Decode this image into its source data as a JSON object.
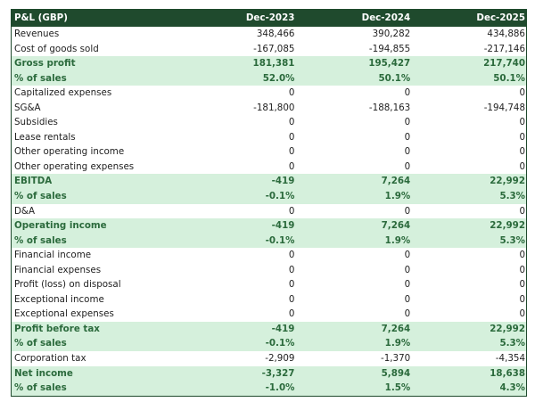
{
  "header": {
    "title": "P&L (GBP)",
    "columns": [
      "Dec-2023",
      "Dec-2024",
      "Dec-2025"
    ]
  },
  "colors": {
    "header_bg": "#1f4a2d",
    "highlight_bg": "#d5f0dc",
    "highlight_text": "#2b6a3c"
  },
  "rows": [
    {
      "label": "Revenues",
      "values": [
        "348,466",
        "390,282",
        "434,886"
      ],
      "highlight": false
    },
    {
      "label": "Cost of goods sold",
      "values": [
        "-167,085",
        "-194,855",
        "-217,146"
      ],
      "highlight": false
    },
    {
      "label": "Gross profit",
      "values": [
        "181,381",
        "195,427",
        "217,740"
      ],
      "highlight": true
    },
    {
      "label": "% of sales",
      "values": [
        "52.0%",
        "50.1%",
        "50.1%"
      ],
      "highlight": true
    },
    {
      "label": "Capitalized expenses",
      "values": [
        "0",
        "0",
        "0"
      ],
      "highlight": false
    },
    {
      "label": "SG&A",
      "values": [
        "-181,800",
        "-188,163",
        "-194,748"
      ],
      "highlight": false
    },
    {
      "label": "Subsidies",
      "values": [
        "0",
        "0",
        "0"
      ],
      "highlight": false
    },
    {
      "label": "Lease rentals",
      "values": [
        "0",
        "0",
        "0"
      ],
      "highlight": false
    },
    {
      "label": "Other operating income",
      "values": [
        "0",
        "0",
        "0"
      ],
      "highlight": false
    },
    {
      "label": "Other operating expenses",
      "values": [
        "0",
        "0",
        "0"
      ],
      "highlight": false
    },
    {
      "label": "EBITDA",
      "values": [
        "-419",
        "7,264",
        "22,992"
      ],
      "highlight": true
    },
    {
      "label": "% of sales",
      "values": [
        "-0.1%",
        "1.9%",
        "5.3%"
      ],
      "highlight": true
    },
    {
      "label": "D&A",
      "values": [
        "0",
        "0",
        "0"
      ],
      "highlight": false
    },
    {
      "label": "Operating income",
      "values": [
        "-419",
        "7,264",
        "22,992"
      ],
      "highlight": true
    },
    {
      "label": "% of sales",
      "values": [
        "-0.1%",
        "1.9%",
        "5.3%"
      ],
      "highlight": true
    },
    {
      "label": "Financial income",
      "values": [
        "0",
        "0",
        "0"
      ],
      "highlight": false
    },
    {
      "label": "Financial expenses",
      "values": [
        "0",
        "0",
        "0"
      ],
      "highlight": false
    },
    {
      "label": "Profit (loss) on disposal",
      "values": [
        "0",
        "0",
        "0"
      ],
      "highlight": false
    },
    {
      "label": "Exceptional income",
      "values": [
        "0",
        "0",
        "0"
      ],
      "highlight": false
    },
    {
      "label": "Exceptional expenses",
      "values": [
        "0",
        "0",
        "0"
      ],
      "highlight": false
    },
    {
      "label": "Profit before tax",
      "values": [
        "-419",
        "7,264",
        "22,992"
      ],
      "highlight": true
    },
    {
      "label": "% of sales",
      "values": [
        "-0.1%",
        "1.9%",
        "5.3%"
      ],
      "highlight": true
    },
    {
      "label": "Corporation tax",
      "values": [
        "-2,909",
        "-1,370",
        "-4,354"
      ],
      "highlight": false
    },
    {
      "label": "Net income",
      "values": [
        "-3,327",
        "5,894",
        "18,638"
      ],
      "highlight": true
    },
    {
      "label": "% of sales",
      "values": [
        "-1.0%",
        "1.5%",
        "4.3%"
      ],
      "highlight": true
    }
  ]
}
